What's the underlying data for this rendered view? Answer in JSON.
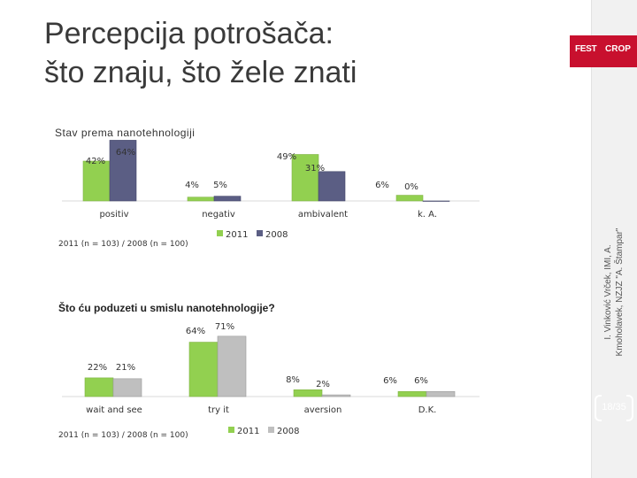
{
  "slide": {
    "title_line1": "Percepcija potrošača:",
    "title_line2": "što znaju, što žele znati",
    "logo_text_left": "FEST",
    "logo_text_right": "CROP",
    "credit_line1": "I. Vinković Vrček, IMI, A.",
    "credit_line2": "Kmoholavek, NZJZ \"A. Štampar\"",
    "page_number": "18/35"
  },
  "colors": {
    "series_2011": "#92d050",
    "series_2008_chart1": "#5b5e84",
    "series_2008_chart2": "#bfbfbf"
  },
  "chart_data": [
    {
      "type": "bar",
      "title": "Stav prema nanotehnologiji",
      "categories": [
        "positiv",
        "negativ",
        "ambivalent",
        "k. A."
      ],
      "series": [
        {
          "name": "2011",
          "values": [
            42,
            4,
            49,
            6
          ],
          "labels": [
            "42%",
            "4%",
            "49%",
            "6%"
          ]
        },
        {
          "name": "2008",
          "values": [
            64,
            5,
            31,
            0
          ],
          "labels": [
            "64%",
            "5%",
            "31%",
            "0%"
          ]
        }
      ],
      "ylim": [
        0,
        70
      ],
      "note": "2011 (n = 103) / 2008 (n = 100)",
      "legend": "bottom-center"
    },
    {
      "type": "bar",
      "title": "Što ću poduzeti u smislu nanotehnologije?",
      "categories": [
        "wait and see",
        "try it",
        "aversion",
        "D.K."
      ],
      "series": [
        {
          "name": "2011",
          "values": [
            22,
            64,
            8,
            6
          ],
          "labels": [
            "22%",
            "64%",
            "8%",
            "6%"
          ]
        },
        {
          "name": "2008",
          "values": [
            21,
            71,
            2,
            6
          ],
          "labels": [
            "21%",
            "71%",
            "2%",
            "6%"
          ]
        }
      ],
      "ylim": [
        0,
        75
      ],
      "note": "2011 (n = 103) / 2008 (n = 100)",
      "legend": "bottom-center"
    }
  ]
}
